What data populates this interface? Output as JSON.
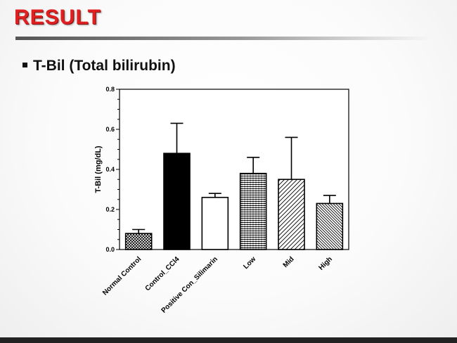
{
  "slide": {
    "title": "RESULT",
    "bullet": "T-Bil (Total bilirubin)"
  },
  "chart_data": {
    "type": "bar",
    "categories": [
      "Normal Control",
      "Control_CCl4",
      "Positive Con_Silimarin",
      "Low",
      "Mid",
      "High"
    ],
    "values": [
      0.08,
      0.48,
      0.26,
      0.38,
      0.35,
      0.23
    ],
    "errors": [
      0.02,
      0.15,
      0.02,
      0.08,
      0.21,
      0.04
    ],
    "patterns": [
      "crosshatch",
      "solid",
      "empty",
      "horizontal",
      "diagonal",
      "diagonal-dense"
    ],
    "ylabel": "T-Bil (mg/dL)",
    "xlabel": "",
    "ylim": [
      0.0,
      0.8
    ],
    "yticks": [
      "0.0",
      "0.2",
      "0.4",
      "0.6",
      "0.8"
    ],
    "grid": false
  }
}
